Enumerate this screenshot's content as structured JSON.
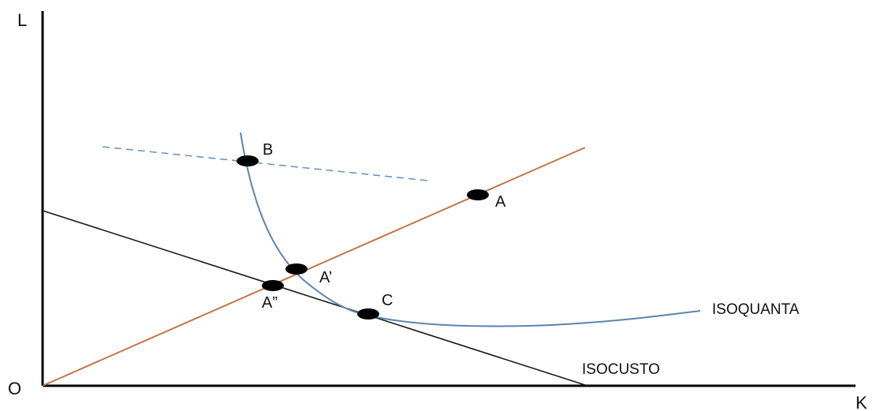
{
  "axes": {
    "y_label": "L",
    "x_label": "K",
    "origin_label": "O"
  },
  "curves": {
    "isoquant_label": "ISOQUANTA",
    "isocost_label": "ISOCUSTO"
  },
  "points": {
    "a": "A",
    "a_prime": "A’",
    "a_double_prime": "A”",
    "b": "B",
    "c": "C"
  },
  "colors": {
    "axis": "#000000",
    "isocost": "#1a1a1a",
    "expansion_ray": "#c0764a",
    "isoquant": "#5b84ad",
    "dashed_line": "#6f94c0",
    "point": "#000000"
  }
}
